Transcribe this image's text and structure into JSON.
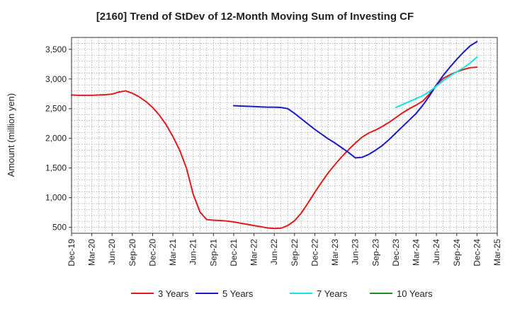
{
  "chart_data": {
    "type": "line",
    "title": "[2160]  Trend of StDev of 12-Month Moving Sum of Investing CF",
    "xlabel": "",
    "ylabel": "Amount (million yen)",
    "ylim": [
      400,
      3700
    ],
    "yticks": [
      500,
      1000,
      1500,
      2000,
      2500,
      3000,
      3500
    ],
    "ytick_labels": [
      "500",
      "1,000",
      "1,500",
      "2,000",
      "2,500",
      "3,000",
      "3,500"
    ],
    "x_start": "Dec-19",
    "xticks": [
      "Dec-19",
      "Mar-20",
      "Jun-20",
      "Sep-20",
      "Dec-20",
      "Mar-21",
      "Jun-21",
      "Sep-21",
      "Dec-21",
      "Mar-22",
      "Jun-22",
      "Sep-22",
      "Dec-22",
      "Mar-23",
      "Jun-23",
      "Sep-23",
      "Dec-23",
      "Mar-24",
      "Jun-24",
      "Sep-24",
      "Dec-24",
      "Mar-25"
    ],
    "grid": true,
    "legend_position": "bottom",
    "series": [
      {
        "name": "3 Years",
        "color": "#e01b1b",
        "x": [
          "Dec-19",
          "Jan-20",
          "Feb-20",
          "Mar-20",
          "Apr-20",
          "May-20",
          "Jun-20",
          "Jul-20",
          "Aug-20",
          "Sep-20",
          "Oct-20",
          "Nov-20",
          "Dec-20",
          "Jan-21",
          "Feb-21",
          "Mar-21",
          "Apr-21",
          "May-21",
          "Jun-21",
          "Jul-21",
          "Aug-21",
          "Sep-21",
          "Oct-21",
          "Nov-21",
          "Dec-21",
          "Jan-22",
          "Feb-22",
          "Mar-22",
          "Apr-22",
          "May-22",
          "Jun-22",
          "Jul-22",
          "Aug-22",
          "Sep-22",
          "Oct-22",
          "Nov-22",
          "Dec-22",
          "Jan-23",
          "Feb-23",
          "Mar-23",
          "Apr-23",
          "May-23",
          "Jun-23",
          "Jul-23",
          "Aug-23",
          "Sep-23",
          "Oct-23",
          "Nov-23",
          "Dec-23",
          "Jan-24",
          "Feb-24",
          "Mar-24",
          "Apr-24",
          "May-24",
          "Jun-24",
          "Jul-24",
          "Aug-24",
          "Sep-24",
          "Oct-24",
          "Nov-24",
          "Dec-24"
        ],
        "values": [
          2730,
          2725,
          2725,
          2725,
          2730,
          2735,
          2745,
          2780,
          2800,
          2760,
          2700,
          2620,
          2520,
          2390,
          2230,
          2030,
          1800,
          1500,
          1060,
          760,
          630,
          620,
          615,
          605,
          590,
          570,
          550,
          530,
          510,
          490,
          480,
          485,
          530,
          610,
          740,
          910,
          1090,
          1260,
          1420,
          1560,
          1690,
          1810,
          1920,
          2020,
          2090,
          2140,
          2200,
          2270,
          2350,
          2430,
          2500,
          2560,
          2630,
          2750,
          2900,
          3010,
          3070,
          3120,
          3160,
          3190,
          3200
        ]
      },
      {
        "name": "5 Years",
        "color": "#1a1acc",
        "x": [
          "Dec-21",
          "Jan-22",
          "Feb-22",
          "Mar-22",
          "Apr-22",
          "May-22",
          "Jun-22",
          "Jul-22",
          "Aug-22",
          "Sep-22",
          "Oct-22",
          "Nov-22",
          "Dec-22",
          "Jan-23",
          "Feb-23",
          "Mar-23",
          "Apr-23",
          "May-23",
          "Jun-23",
          "Jul-23",
          "Aug-23",
          "Sep-23",
          "Oct-23",
          "Nov-23",
          "Dec-23",
          "Jan-24",
          "Feb-24",
          "Mar-24",
          "Apr-24",
          "May-24",
          "Jun-24",
          "Jul-24",
          "Aug-24",
          "Sep-24",
          "Oct-24",
          "Nov-24",
          "Dec-24"
        ],
        "values": [
          2550,
          2545,
          2540,
          2535,
          2530,
          2525,
          2525,
          2520,
          2500,
          2420,
          2330,
          2240,
          2150,
          2070,
          1990,
          1920,
          1840,
          1760,
          1670,
          1680,
          1730,
          1800,
          1880,
          1980,
          2090,
          2200,
          2310,
          2420,
          2560,
          2720,
          2900,
          3060,
          3200,
          3330,
          3450,
          3560,
          3630
        ]
      },
      {
        "name": "7 Years",
        "color": "#18e0e8",
        "x": [
          "Dec-23",
          "Jan-24",
          "Feb-24",
          "Mar-24",
          "Apr-24",
          "May-24",
          "Jun-24",
          "Jul-24",
          "Aug-24",
          "Sep-24",
          "Oct-24",
          "Nov-24",
          "Dec-24"
        ],
        "values": [
          2520,
          2570,
          2620,
          2670,
          2720,
          2790,
          2880,
          2970,
          3050,
          3120,
          3190,
          3270,
          3370
        ]
      },
      {
        "name": "10 Years",
        "color": "#228b22",
        "x": [],
        "values": []
      }
    ]
  }
}
